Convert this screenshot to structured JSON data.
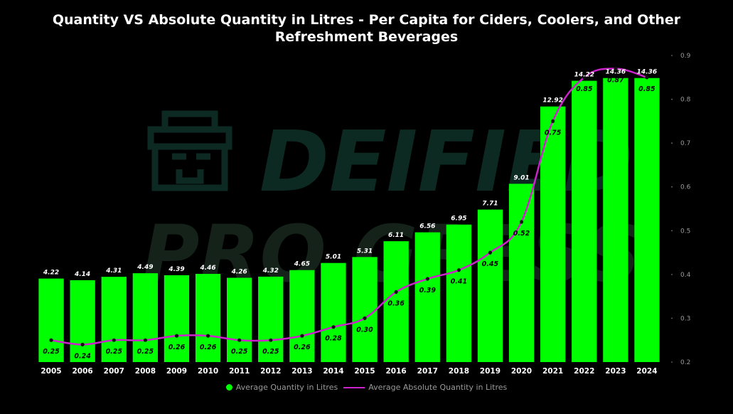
{
  "title": "Quantity VS Absolute Quantity in Litres - Per Capita for Ciders, Coolers, and Other Refreshment Beverages",
  "colors": {
    "bar": "#00ff00",
    "line": "#cc22cc",
    "background": "#000000",
    "watermark": "#0d2a22"
  },
  "watermark": {
    "line1": "DEIFIED",
    "line2": "PRO GRESS"
  },
  "chart_data": {
    "type": "bar",
    "title": "Quantity VS Absolute Quantity in Litres - Per Capita for Ciders, Coolers, and Other Refreshment Beverages",
    "categories": [
      "2005",
      "2006",
      "2007",
      "2008",
      "2009",
      "2010",
      "2011",
      "2012",
      "2013",
      "2014",
      "2015",
      "2016",
      "2017",
      "2018",
      "2019",
      "2020",
      "2021",
      "2022",
      "2023",
      "2024"
    ],
    "series": [
      {
        "name": "Average Quantity in Litres",
        "type": "bar",
        "axis": "left",
        "values": [
          4.22,
          4.14,
          4.31,
          4.49,
          4.39,
          4.46,
          4.26,
          4.32,
          4.65,
          5.01,
          5.31,
          6.11,
          6.56,
          6.95,
          7.71,
          9.01,
          12.92,
          14.22,
          14.36,
          14.36
        ],
        "labels": [
          "4.22",
          "4.14",
          "4.31",
          "4.49",
          "4.39",
          "4.46",
          "4.26",
          "4.32",
          "4.65",
          "5.01",
          "5.31",
          "6.11",
          "6.56",
          "6.95",
          "7.71",
          "9.01",
          "12.92",
          "14.22",
          "14.36",
          "14.36"
        ]
      },
      {
        "name": "Average Absolute Quantity in Litres",
        "type": "line",
        "axis": "right",
        "values": [
          0.25,
          0.24,
          0.25,
          0.25,
          0.26,
          0.26,
          0.25,
          0.25,
          0.26,
          0.28,
          0.3,
          0.36,
          0.39,
          0.41,
          0.45,
          0.52,
          0.75,
          0.85,
          0.87,
          0.85
        ],
        "labels": [
          "0.25",
          "0.24",
          "0.25",
          "0.25",
          "0.26",
          "0.26",
          "0.25",
          "0.25",
          "0.26",
          "0.28",
          "0.30",
          "0.36",
          "0.39",
          "0.41",
          "0.45",
          "0.52",
          "0.75",
          "0.85",
          "0.87",
          "0.85"
        ]
      }
    ],
    "y_left_lim": [
      0,
      14.6
    ],
    "y_right_lim": [
      0.2,
      0.9
    ],
    "y_right_ticks": [
      "0.9",
      "0.8",
      "0.7",
      "0.6",
      "0.5",
      "0.4",
      "0.3",
      "0.2"
    ],
    "legend_position": "bottom-center",
    "grid": false
  }
}
